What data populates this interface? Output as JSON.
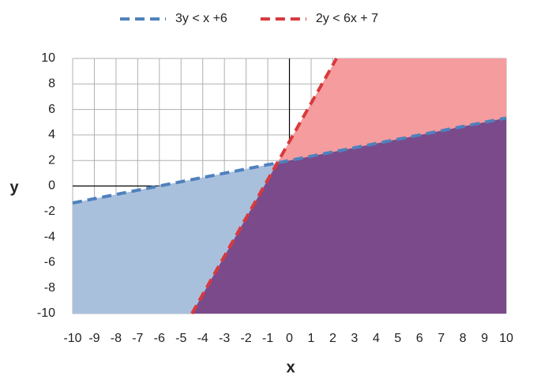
{
  "chart_data": {
    "type": "line",
    "xlabel": "x",
    "ylabel": "y",
    "xlim": [
      -10,
      10
    ],
    "ylim": [
      -10,
      10
    ],
    "xticks": [
      -10,
      -9,
      -8,
      -7,
      -6,
      -5,
      -4,
      -3,
      -2,
      -1,
      0,
      1,
      2,
      3,
      4,
      5,
      6,
      7,
      8,
      9,
      10
    ],
    "yticks": [
      -10,
      -8,
      -6,
      -4,
      -2,
      0,
      2,
      4,
      6,
      8,
      10
    ],
    "grid": true,
    "legend": "top",
    "overlap_color": "#7b4a8a",
    "series": [
      {
        "name": "3y < x +6",
        "color": "#4f81bd",
        "fill": "#a9c0dd",
        "shade": "below",
        "x": [
          -10,
          10
        ],
        "values": [
          -1.33,
          5.33
        ]
      },
      {
        "name": "2y < 6x + 7",
        "color": "#d9393c",
        "fill": "#f49c9e",
        "shade": "right",
        "x": [
          -4.5,
          2.17
        ],
        "values": [
          -10,
          10
        ]
      }
    ]
  }
}
